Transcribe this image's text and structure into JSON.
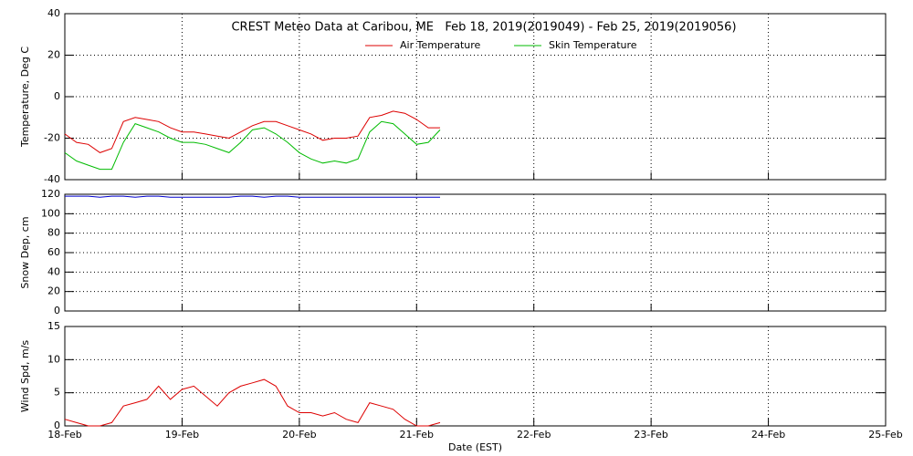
{
  "chart_data": [
    {
      "type": "line",
      "title": "CREST Meteo Data at Caribou, ME   Feb 18, 2019(2019049) - Feb 25, 2019(2019056)",
      "ylabel": "Temperature, Deg C",
      "ylim": [
        -40,
        40
      ],
      "yticks": [
        -40,
        -20,
        0,
        20,
        40
      ],
      "xlim": [
        0,
        7
      ],
      "grid": true,
      "x": [
        0,
        0.1,
        0.2,
        0.3,
        0.4,
        0.5,
        0.6,
        0.7,
        0.8,
        0.9,
        1.0,
        1.1,
        1.2,
        1.3,
        1.4,
        1.5,
        1.6,
        1.7,
        1.8,
        1.9,
        2.0,
        2.1,
        2.2,
        2.3,
        2.4,
        2.5,
        2.6,
        2.7,
        2.8,
        2.9,
        3.0,
        3.1,
        3.2
      ],
      "series": [
        {
          "name": "Air Temperature",
          "color": "#dd0000",
          "values": [
            -18,
            -22,
            -23,
            -27,
            -25,
            -12,
            -10,
            -11,
            -12,
            -15,
            -17,
            -17,
            -18,
            -19,
            -20,
            -17,
            -14,
            -12,
            -12,
            -14,
            -16,
            -18,
            -21,
            -20,
            -20,
            -19,
            -10,
            -9,
            -7,
            -8,
            -11,
            -15,
            -15
          ]
        },
        {
          "name": "Skin Temperature",
          "color": "#00bb00",
          "values": [
            -27,
            -31,
            -33,
            -35,
            -35,
            -22,
            -13,
            -15,
            -17,
            -20,
            -22,
            -22,
            -23,
            -25,
            -27,
            -22,
            -16,
            -15,
            -18,
            -22,
            -27,
            -30,
            -32,
            -31,
            -32,
            -30,
            -17,
            -12,
            -13,
            -18,
            -23,
            -22,
            -16
          ]
        }
      ]
    },
    {
      "type": "line",
      "ylabel": "Snow Dep, cm",
      "ylim": [
        0,
        120
      ],
      "yticks": [
        0,
        20,
        40,
        60,
        80,
        100,
        120
      ],
      "xlim": [
        0,
        7
      ],
      "grid": true,
      "x": [
        0,
        0.1,
        0.2,
        0.3,
        0.4,
        0.5,
        0.6,
        0.7,
        0.8,
        0.9,
        1.0,
        1.1,
        1.2,
        1.3,
        1.4,
        1.5,
        1.6,
        1.7,
        1.8,
        1.9,
        2.0,
        2.1,
        2.2,
        2.3,
        2.4,
        2.5,
        2.6,
        2.7,
        2.8,
        2.9,
        3.0,
        3.1,
        3.2
      ],
      "series": [
        {
          "color": "#0000cc",
          "values": [
            118,
            118,
            118,
            117,
            118,
            118,
            117,
            118,
            118,
            117,
            117,
            117,
            117,
            117,
            117,
            118,
            118,
            117,
            118,
            118,
            117,
            117,
            117,
            117,
            117,
            117,
            117,
            117,
            117,
            117,
            117,
            117,
            117
          ]
        }
      ]
    },
    {
      "type": "line",
      "ylabel": "Wind Spd, m/s",
      "xlabel": "Date (EST)",
      "ylim": [
        0,
        15
      ],
      "yticks": [
        0,
        5,
        10,
        15
      ],
      "xlim": [
        0,
        7
      ],
      "grid": true,
      "xticks": [
        {
          "value": 0,
          "label": "18-Feb"
        },
        {
          "value": 1,
          "label": "19-Feb"
        },
        {
          "value": 2,
          "label": "20-Feb"
        },
        {
          "value": 3,
          "label": "21-Feb"
        },
        {
          "value": 4,
          "label": "22-Feb"
        },
        {
          "value": 5,
          "label": "23-Feb"
        },
        {
          "value": 6,
          "label": "24-Feb"
        },
        {
          "value": 7,
          "label": "25-Feb"
        }
      ],
      "x": [
        0,
        0.1,
        0.2,
        0.3,
        0.4,
        0.5,
        0.6,
        0.7,
        0.8,
        0.9,
        1.0,
        1.1,
        1.2,
        1.3,
        1.4,
        1.5,
        1.6,
        1.7,
        1.8,
        1.9,
        2.0,
        2.1,
        2.2,
        2.3,
        2.4,
        2.5,
        2.6,
        2.7,
        2.8,
        2.9,
        3.0,
        3.1,
        3.2
      ],
      "series": [
        {
          "color": "#dd0000",
          "values": [
            1,
            0.5,
            0,
            0,
            0.5,
            3,
            3.5,
            4,
            6,
            4,
            5.5,
            6,
            4.5,
            3,
            5,
            6,
            6.5,
            7,
            6,
            3,
            2,
            2,
            1.5,
            2,
            1,
            0.5,
            3.5,
            3,
            2.5,
            1,
            0,
            0,
            0.5
          ]
        }
      ]
    }
  ]
}
